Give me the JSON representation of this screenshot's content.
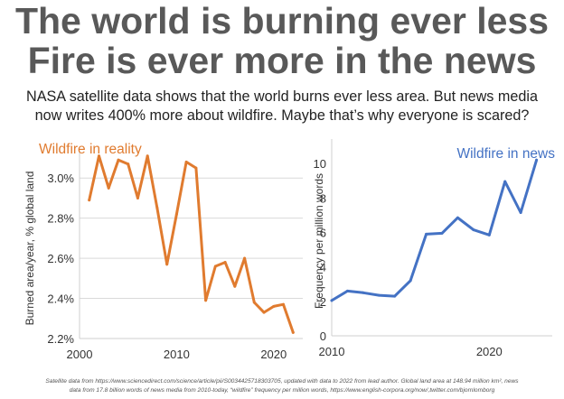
{
  "header": {
    "title_line1": "The world is burning ever less",
    "title_line2": "Fire is ever more in the news",
    "subtitle_line1": "NASA satellite data shows that the world burns ever less area. But news media",
    "subtitle_line2": "now writes 400% more about wildfire. Maybe that’s why everyone is scared?"
  },
  "footnote": {
    "line1": "Satellite data from https://www.sciencedirect.com/science/article/pii/S0034425718303705, updated with data to 2022 from lead author. Global land area at 148.94 million km², news",
    "line2": "data from 17.8 billion words of news media from 2010-today, “wildfire” frequency per million words, https://www.english-corpora.org/now/,twitter.com/bjornlomborg"
  },
  "chart_data": [
    {
      "type": "line",
      "title": "Wildfire in reality",
      "ylabel": "Burned area/year, % global land",
      "xlim": [
        2000,
        2023
      ],
      "ylim": [
        2.2,
        3.1
      ],
      "xticks": [
        "2000",
        "2010",
        "2020"
      ],
      "xtick_values": [
        2000,
        2010,
        2020
      ],
      "yticks": [
        "2.2%",
        "2.4%",
        "2.6%",
        "2.8%",
        "3.0%"
      ],
      "ytick_values": [
        2.2,
        2.4,
        2.6,
        2.8,
        3.0
      ],
      "color": "#E07B2F",
      "grid": true,
      "x": [
        2001,
        2002,
        2003,
        2004,
        2005,
        2006,
        2007,
        2008,
        2009,
        2010,
        2011,
        2012,
        2013,
        2014,
        2015,
        2016,
        2017,
        2018,
        2019,
        2020,
        2021,
        2022
      ],
      "y": [
        2.89,
        3.11,
        2.95,
        3.09,
        3.07,
        2.9,
        3.11,
        2.85,
        2.57,
        2.82,
        3.08,
        3.05,
        2.39,
        2.56,
        2.58,
        2.46,
        2.6,
        2.38,
        2.33,
        2.36,
        2.37,
        2.23
      ]
    },
    {
      "type": "line",
      "title": "Wildfire in news",
      "ylabel": "Frequency per million words",
      "xlim": [
        2010,
        2024
      ],
      "ylim": [
        0,
        11
      ],
      "xticks": [
        "2010",
        "2020"
      ],
      "xtick_values": [
        2010,
        2020
      ],
      "yticks": [
        "0",
        "2",
        "4",
        "6",
        "8",
        "10"
      ],
      "ytick_values": [
        0,
        2,
        4,
        6,
        8,
        10
      ],
      "color": "#4472C4",
      "grid": false,
      "x": [
        2010,
        2011,
        2012,
        2013,
        2014,
        2015,
        2016,
        2017,
        2018,
        2019,
        2020,
        2021,
        2022,
        2023
      ],
      "y": [
        2.05,
        2.6,
        2.5,
        2.35,
        2.3,
        3.2,
        5.9,
        5.95,
        6.85,
        6.15,
        5.85,
        8.95,
        7.15,
        10.2
      ]
    }
  ]
}
